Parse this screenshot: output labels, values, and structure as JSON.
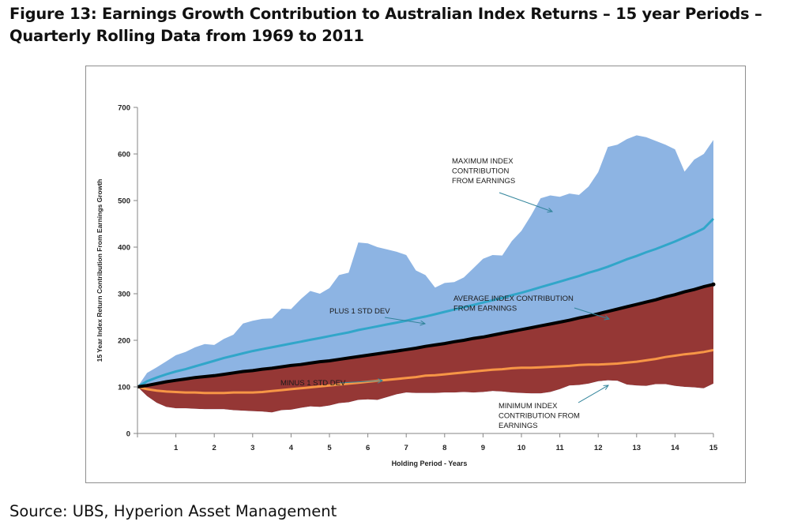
{
  "figure": {
    "title": "Figure 13: Earnings Growth Contribution to Australian Index Returns – 15 year Periods – Quarterly Rolling Data from 1969 to 2011",
    "source": "Source: UBS, Hyperion Asset Management"
  },
  "colors": {
    "max_area": "#8db4e3",
    "min_area": "#953735",
    "plus_std_line": "#31a6c9",
    "average_line": "#000000",
    "minus_std_line": "#f79646",
    "annotation_arrow": "#31849b"
  },
  "chart_data": {
    "type": "area",
    "title": "",
    "xlabel": "Holding Period - Years",
    "ylabel": "15 Year Index Return Contribution From Earnings Growth",
    "xlim": [
      0,
      15
    ],
    "ylim": [
      0,
      700
    ],
    "x_ticks": [
      1,
      2,
      3,
      4,
      5,
      6,
      7,
      8,
      9,
      10,
      11,
      12,
      13,
      14,
      15
    ],
    "y_ticks": [
      0,
      100,
      200,
      300,
      400,
      500,
      600,
      700
    ],
    "grid": false,
    "x": [
      0,
      0.25,
      0.5,
      0.75,
      1,
      1.25,
      1.5,
      1.75,
      2,
      2.25,
      2.5,
      2.75,
      3,
      3.25,
      3.5,
      3.75,
      4,
      4.25,
      4.5,
      4.75,
      5,
      5.25,
      5.5,
      5.75,
      6,
      6.25,
      6.5,
      6.75,
      7,
      7.25,
      7.5,
      7.75,
      8,
      8.25,
      8.5,
      8.75,
      9,
      9.25,
      9.5,
      9.75,
      10,
      10.25,
      10.5,
      10.75,
      11,
      11.25,
      11.5,
      11.75,
      12,
      12.25,
      12.5,
      12.75,
      13,
      13.25,
      13.5,
      13.75,
      14,
      14.25,
      14.5,
      14.75,
      15
    ],
    "series": [
      {
        "name": "MAXIMUM INDEX CONTRIBUTION FROM EARNINGS",
        "style": "area",
        "values": [
          100,
          130,
          142,
          155,
          168,
          175,
          185,
          192,
          190,
          203,
          212,
          236,
          242,
          246,
          247,
          268,
          267,
          288,
          306,
          300,
          312,
          340,
          345,
          410,
          408,
          400,
          395,
          390,
          383,
          350,
          340,
          313,
          323,
          325,
          335,
          355,
          375,
          383,
          382,
          413,
          435,
          468,
          505,
          511,
          508,
          515,
          512,
          530,
          561,
          615,
          620,
          632,
          640,
          636,
          628,
          620,
          610,
          562,
          588,
          600,
          630
        ]
      },
      {
        "name": "PLUS 1 STD DEV",
        "style": "line",
        "values": [
          100,
          112,
          120,
          127,
          133,
          138,
          144,
          150,
          156,
          162,
          167,
          172,
          177,
          181,
          185,
          189,
          193,
          197,
          201,
          205,
          209,
          213,
          217,
          222,
          226,
          230,
          234,
          238,
          242,
          247,
          251,
          256,
          261,
          266,
          271,
          276,
          281,
          286,
          291,
          297,
          302,
          308,
          314,
          320,
          326,
          332,
          338,
          345,
          351,
          358,
          366,
          374,
          381,
          389,
          396,
          404,
          412,
          421,
          430,
          440,
          461
        ]
      },
      {
        "name": "AVERAGE INDEX CONTRIBUTION FROM EARNINGS",
        "style": "line",
        "values": [
          100,
          103,
          107,
          111,
          114,
          117,
          120,
          122,
          124,
          127,
          130,
          133,
          135,
          138,
          140,
          143,
          146,
          148,
          151,
          154,
          156,
          159,
          162,
          165,
          168,
          171,
          174,
          177,
          180,
          183,
          187,
          190,
          193,
          197,
          200,
          204,
          207,
          211,
          215,
          219,
          223,
          227,
          231,
          235,
          239,
          243,
          248,
          252,
          257,
          262,
          267,
          272,
          277,
          282,
          287,
          293,
          298,
          304,
          309,
          315,
          320
        ]
      },
      {
        "name": "MINUS 1 STD DEV",
        "style": "line",
        "values": [
          100,
          95,
          92,
          90,
          89,
          88,
          88,
          87,
          87,
          87,
          88,
          88,
          88,
          89,
          91,
          93,
          95,
          97,
          99,
          101,
          103,
          105,
          107,
          109,
          111,
          113,
          115,
          117,
          119,
          121,
          124,
          125,
          127,
          129,
          131,
          133,
          135,
          137,
          138,
          140,
          141,
          141,
          142,
          143,
          144,
          145,
          147,
          148,
          148,
          149,
          150,
          152,
          154,
          157,
          160,
          164,
          167,
          170,
          172,
          175,
          179
        ]
      },
      {
        "name": "MINIMUM INDEX CONTRIBUTION FROM EARNINGS",
        "style": "area",
        "values": [
          100,
          80,
          66,
          57,
          54,
          54,
          53,
          52,
          52,
          52,
          50,
          49,
          48,
          47,
          45,
          50,
          51,
          55,
          58,
          57,
          60,
          65,
          67,
          72,
          73,
          72,
          78,
          84,
          88,
          87,
          87,
          87,
          88,
          88,
          89,
          88,
          89,
          91,
          90,
          88,
          87,
          86,
          86,
          89,
          95,
          103,
          104,
          107,
          112,
          114,
          113,
          105,
          103,
          102,
          106,
          106,
          102,
          100,
          99,
          97,
          107
        ]
      }
    ],
    "annotations": [
      {
        "text": [
          "MAXIMUM INDEX",
          "CONTRIBUTION",
          "FROM EARNINGS"
        ]
      },
      {
        "text": [
          "PLUS 1 STD DEV"
        ]
      },
      {
        "text": [
          "AVERAGE INDEX CONTRIBUTION",
          "FROM EARNINGS"
        ]
      },
      {
        "text": [
          "MINUS 1 STD DEV"
        ]
      },
      {
        "text": [
          "MINIMUM INDEX",
          "CONTRIBUTION FROM",
          "EARNINGS"
        ]
      }
    ]
  }
}
